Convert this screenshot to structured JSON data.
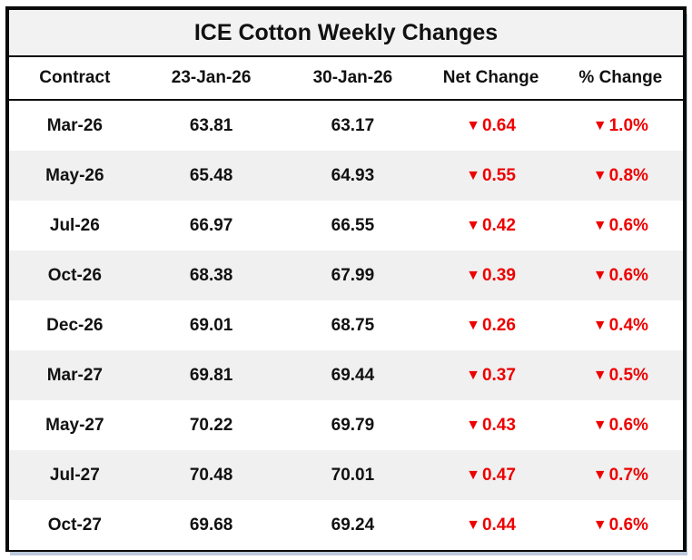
{
  "title": "ICE Cotton Weekly Changes",
  "table": {
    "columns": [
      "Contract",
      "23-Jan-26",
      "30-Jan-26",
      "Net Change",
      "% Change"
    ],
    "rows": [
      {
        "contract": "Mar-26",
        "prev": "63.81",
        "curr": "63.17",
        "net_change": "0.64",
        "pct_change": "1.0%",
        "direction": "down"
      },
      {
        "contract": "May-26",
        "prev": "65.48",
        "curr": "64.93",
        "net_change": "0.55",
        "pct_change": "0.8%",
        "direction": "down"
      },
      {
        "contract": "Jul-26",
        "prev": "66.97",
        "curr": "66.55",
        "net_change": "0.42",
        "pct_change": "0.6%",
        "direction": "down"
      },
      {
        "contract": "Oct-26",
        "prev": "68.38",
        "curr": "67.99",
        "net_change": "0.39",
        "pct_change": "0.6%",
        "direction": "down"
      },
      {
        "contract": "Dec-26",
        "prev": "69.01",
        "curr": "68.75",
        "net_change": "0.26",
        "pct_change": "0.4%",
        "direction": "down"
      },
      {
        "contract": "Mar-27",
        "prev": "69.81",
        "curr": "69.44",
        "net_change": "0.37",
        "pct_change": "0.5%",
        "direction": "down"
      },
      {
        "contract": "May-27",
        "prev": "70.22",
        "curr": "69.79",
        "net_change": "0.43",
        "pct_change": "0.6%",
        "direction": "down"
      },
      {
        "contract": "Jul-27",
        "prev": "70.48",
        "curr": "70.01",
        "net_change": "0.47",
        "pct_change": "0.7%",
        "direction": "down"
      },
      {
        "contract": "Oct-27",
        "prev": "69.68",
        "curr": "69.24",
        "net_change": "0.44",
        "pct_change": "0.6%",
        "direction": "down"
      }
    ]
  },
  "icons": {
    "down_triangle": "▼"
  },
  "colors": {
    "negative_red": "#EE0000",
    "row_alt_gray": "#F0F0F0",
    "title_bg_gray": "#F2F2F2",
    "border_black": "#0A0A0A"
  },
  "chart_data": {
    "type": "table",
    "title": "ICE Cotton Weekly Changes",
    "categories": [
      "Mar-26",
      "May-26",
      "Jul-26",
      "Oct-26",
      "Dec-26",
      "Mar-27",
      "May-27",
      "Jul-27",
      "Oct-27"
    ],
    "series": [
      {
        "name": "23-Jan-26",
        "values": [
          63.81,
          65.48,
          66.97,
          68.38,
          69.01,
          69.81,
          70.22,
          70.48,
          69.68
        ]
      },
      {
        "name": "30-Jan-26",
        "values": [
          63.17,
          64.93,
          66.55,
          67.99,
          68.75,
          69.44,
          69.79,
          70.01,
          69.24
        ]
      },
      {
        "name": "Net Change",
        "values": [
          -0.64,
          -0.55,
          -0.42,
          -0.39,
          -0.26,
          -0.37,
          -0.43,
          -0.47,
          -0.44
        ]
      },
      {
        "name": "% Change",
        "values": [
          -1.0,
          -0.8,
          -0.6,
          -0.6,
          -0.4,
          -0.5,
          -0.6,
          -0.7,
          -0.6
        ]
      }
    ]
  }
}
